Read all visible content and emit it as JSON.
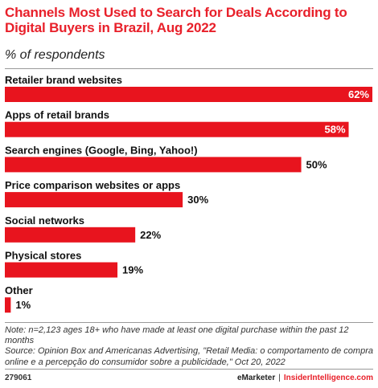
{
  "title": "Channels Most Used to Search for Deals According to Digital Buyers in Brazil, Aug 2022",
  "subtitle": "% of respondents",
  "chart_data": {
    "type": "bar",
    "orientation": "horizontal",
    "categories": [
      "Retailer brand websites",
      "Apps of retail brands",
      "Search engines (Google, Bing, Yahoo!)",
      "Price comparison websites or apps",
      "Social networks",
      "Physical stores",
      "Other"
    ],
    "values": [
      62,
      58,
      50,
      30,
      22,
      19,
      1
    ],
    "value_labels": [
      "62%",
      "58%",
      "50%",
      "30%",
      "22%",
      "19%",
      "1%"
    ],
    "title": "Channels Most Used to Search for Deals According to Digital Buyers in Brazil, Aug 2022",
    "subtitle": "% of respondents",
    "xlim": [
      0,
      62
    ],
    "grid": false,
    "legend": "none"
  },
  "notes": {
    "note": "Note: n=2,123 ages 18+ who have made at least one digital purchase within the past 12 months",
    "source": "Source: Opinion Box and Americanas Advertising, \"Retail Media: o comportamento de compra online e a percepção do consumidor sobre a publicidade,\" Oct 20, 2022"
  },
  "footer": {
    "id": "279061",
    "brand": "eMarketer",
    "separator": "|",
    "site": "InsiderIntelligence.com"
  },
  "colors": {
    "accent": "#e8202a",
    "bar": "#e8141e",
    "text": "#222222"
  }
}
